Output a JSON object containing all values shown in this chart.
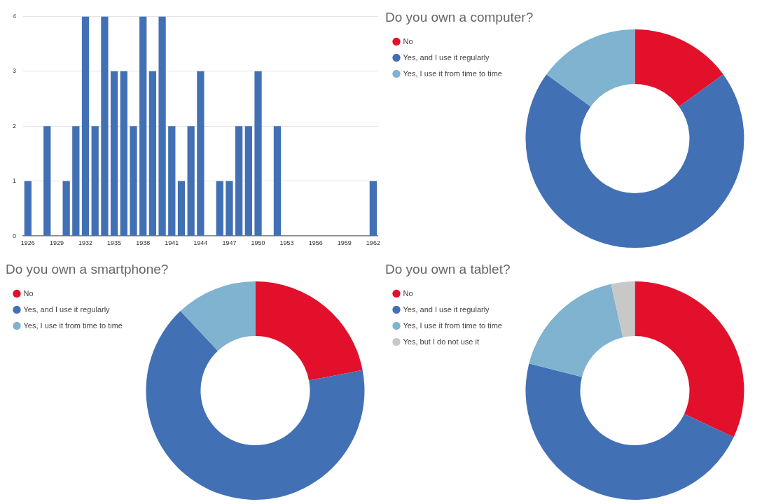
{
  "chart_data": [
    {
      "type": "bar",
      "categories": [
        "1926",
        null,
        null,
        "1929",
        null,
        null,
        "1932",
        null,
        null,
        "1935",
        null,
        null,
        "1938",
        null,
        null,
        "1941",
        null,
        null,
        "1944",
        null,
        null,
        "1947",
        null,
        null,
        "1950",
        null,
        null,
        "1953",
        null,
        null,
        "1956",
        null,
        null,
        "1959",
        null,
        null,
        "1962"
      ],
      "values": [
        1,
        0,
        2,
        0,
        1,
        2,
        4,
        2,
        4,
        3,
        3,
        2,
        4,
        3,
        4,
        2,
        1,
        2,
        3,
        0,
        1,
        1,
        2,
        2,
        3,
        0,
        2,
        0,
        0,
        0,
        0,
        0,
        0,
        0,
        0,
        0,
        1
      ],
      "color": "#4270b4",
      "ylim": [
        0,
        4
      ],
      "yticks": [
        0,
        1,
        2,
        3,
        4
      ],
      "grid": "y"
    },
    {
      "type": "donut",
      "title": "Do you own a computer?",
      "categories": [
        "No",
        "Yes, and I use it regularly",
        "Yes, I use it from time to time"
      ],
      "values": [
        15,
        70,
        15
      ],
      "colors": [
        "#e2102a",
        "#4270b4",
        "#7fb3cf"
      ],
      "legend": "top left"
    },
    {
      "type": "donut",
      "title": "Do you own a smartphone?",
      "categories": [
        "No",
        "Yes, and I use it regularly",
        "Yes, I use it from time to time"
      ],
      "values": [
        22,
        66,
        12
      ],
      "colors": [
        "#e2102a",
        "#4270b4",
        "#7fb3cf"
      ],
      "legend": "top left"
    },
    {
      "type": "donut",
      "title": "Do you own a tablet?",
      "categories": [
        "No",
        "Yes, and I use it regularly",
        "Yes, I use it from time to time",
        "Yes, but I do not use it"
      ],
      "values": [
        32,
        47,
        17.5,
        3.5
      ],
      "colors": [
        "#e2102a",
        "#4270b4",
        "#7fb3cf",
        "#c8c8c8"
      ],
      "legend": "top left"
    }
  ]
}
